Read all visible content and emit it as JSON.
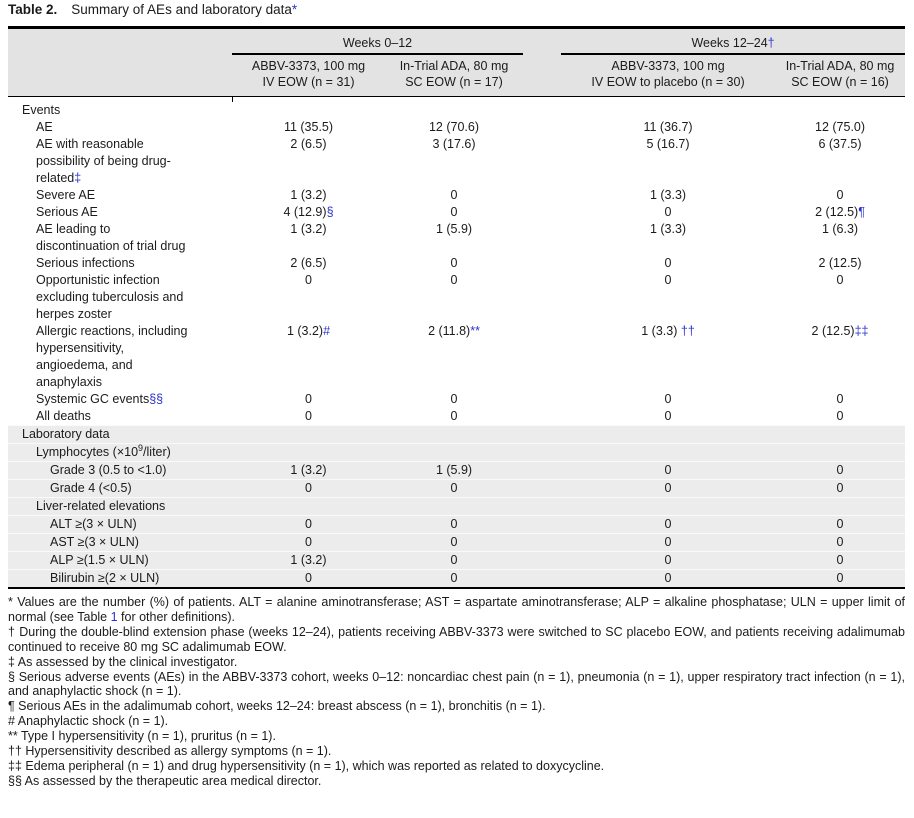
{
  "accent_blue": "#2b33cc",
  "title": {
    "label": "Table 2.",
    "text": "Summary of AEs and laboratory data",
    "marker": "*"
  },
  "header": {
    "group1": {
      "text": "Weeks 0–12",
      "marker": ""
    },
    "group2": {
      "text": "Weeks 12–24",
      "marker": "†"
    },
    "cols": [
      {
        "line1": "ABBV-3373, 100 mg",
        "line2": "IV EOW (n = 31)"
      },
      {
        "line1": "In-Trial ADA, 80 mg",
        "line2": "SC EOW (n = 17)"
      },
      {
        "line1": "ABBV-3373, 100 mg",
        "line2": "IV EOW to placebo (n = 30)"
      },
      {
        "line1": "In-Trial ADA, 80 mg",
        "line2": "SC EOW (n = 16)"
      }
    ]
  },
  "rows": [
    {
      "label": "Events",
      "section": true
    },
    {
      "label": "AE",
      "cells": [
        {
          "v": "11 (35.5)"
        },
        {
          "v": "12 (70.6)"
        },
        {
          "v": "11 (36.7)"
        },
        {
          "v": "12 (75.0)"
        }
      ]
    },
    {
      "label": "AE with reasonable possibility of being drug-related",
      "marker": "‡",
      "cells": [
        {
          "v": "2 (6.5)"
        },
        {
          "v": "3 (17.6)"
        },
        {
          "v": "5 (16.7)"
        },
        {
          "v": "6 (37.5)"
        }
      ]
    },
    {
      "label": "Severe AE",
      "cells": [
        {
          "v": "1 (3.2)"
        },
        {
          "v": "0"
        },
        {
          "v": "1 (3.3)"
        },
        {
          "v": "0"
        }
      ]
    },
    {
      "label": "Serious AE",
      "cells": [
        {
          "v": "4 (12.9)",
          "m": "§"
        },
        {
          "v": "0"
        },
        {
          "v": "0"
        },
        {
          "v": "2 (12.5)",
          "m": "¶"
        }
      ]
    },
    {
      "label": "AE leading to discontinuation of trial drug",
      "cells": [
        {
          "v": "1 (3.2)"
        },
        {
          "v": "1 (5.9)"
        },
        {
          "v": "1 (3.3)"
        },
        {
          "v": "1 (6.3)"
        }
      ]
    },
    {
      "label": "Serious infections",
      "cells": [
        {
          "v": "2 (6.5)"
        },
        {
          "v": "0"
        },
        {
          "v": "0"
        },
        {
          "v": "2 (12.5)"
        }
      ]
    },
    {
      "label": "Opportunistic infection excluding tuberculosis and herpes zoster",
      "cells": [
        {
          "v": "0"
        },
        {
          "v": "0"
        },
        {
          "v": "0"
        },
        {
          "v": "0"
        }
      ]
    },
    {
      "label": "Allergic reactions, including hypersensitivity, angioedema, and anaphylaxis",
      "cells": [
        {
          "v": "1 (3.2)",
          "m": "#"
        },
        {
          "v": "2 (11.8)",
          "m": "**"
        },
        {
          "v": "1 (3.3)",
          "m": " ††"
        },
        {
          "v": "2 (12.5)",
          "m": "‡‡"
        }
      ]
    },
    {
      "label": "Systemic GC events",
      "marker": "§§",
      "cells": [
        {
          "v": "0"
        },
        {
          "v": "0"
        },
        {
          "v": "0"
        },
        {
          "v": "0"
        }
      ]
    },
    {
      "label": "All deaths",
      "cells": [
        {
          "v": "0"
        },
        {
          "v": "0"
        },
        {
          "v": "0"
        },
        {
          "v": "0"
        }
      ]
    },
    {
      "label": "Laboratory data",
      "section": true
    },
    {
      "label_pre": "Lymphocytes (×10",
      "label_sup": "9",
      "label_post": "/liter)",
      "subheader": true
    },
    {
      "label": "Grade 3 (0.5 to <1.0)",
      "cells": [
        {
          "v": "1 (3.2)"
        },
        {
          "v": "1 (5.9)"
        },
        {
          "v": "0"
        },
        {
          "v": "0"
        }
      ]
    },
    {
      "label": "Grade 4 (<0.5)",
      "cells": [
        {
          "v": "0"
        },
        {
          "v": "0"
        },
        {
          "v": "0"
        },
        {
          "v": "0"
        }
      ]
    },
    {
      "label": "Liver-related elevations",
      "subheader": true
    },
    {
      "label": "ALT ≥(3 × ULN)",
      "cells": [
        {
          "v": "0"
        },
        {
          "v": "0"
        },
        {
          "v": "0"
        },
        {
          "v": "0"
        }
      ]
    },
    {
      "label": "AST ≥(3 × ULN)",
      "cells": [
        {
          "v": "0"
        },
        {
          "v": "0"
        },
        {
          "v": "0"
        },
        {
          "v": "0"
        }
      ]
    },
    {
      "label": "ALP ≥(1.5 × ULN)",
      "cells": [
        {
          "v": "1 (3.2)"
        },
        {
          "v": "0"
        },
        {
          "v": "0"
        },
        {
          "v": "0"
        }
      ]
    },
    {
      "label": "Bilirubin ≥(2 × ULN)",
      "cells": [
        {
          "v": "0"
        },
        {
          "v": "0"
        },
        {
          "v": "0"
        },
        {
          "v": "0"
        }
      ]
    }
  ],
  "footnotes": {
    "f0": {
      "pre": "* Values are the number (%) of patients. ALT = alanine aminotransferase; AST = aspartate aminotransferase; ALP = alkaline phosphatase; ULN = upper limit of normal (see Table ",
      "link": "1",
      "post": " for other definitions)."
    },
    "list": [
      "† During the double-blind extension phase (weeks 12–24), patients receiving ABBV-3373 were switched to SC placebo EOW, and patients receiving adalimumab continued to receive 80 mg SC adalimumab EOW.",
      "‡ As assessed by the clinical investigator.",
      "§ Serious adverse events (AEs) in the ABBV-3373 cohort, weeks 0–12: noncardiac chest pain (n = 1), pneumonia (n = 1), upper respiratory tract infection (n = 1), and anaphylactic shock (n = 1).",
      "¶ Serious AEs in the adalimumab cohort, weeks 12–24: breast abscess (n = 1), bronchitis (n = 1).",
      "# Anaphylactic shock (n = 1).",
      "** Type I hypersensitivity (n = 1), pruritus (n = 1).",
      "†† Hypersensitivity described as allergy symptoms (n = 1).",
      "‡‡ Edema peripheral (n = 1) and drug hypersensitivity (n = 1), which was reported as related to doxycycline.",
      "§§ As assessed by the therapeutic area medical director."
    ]
  }
}
